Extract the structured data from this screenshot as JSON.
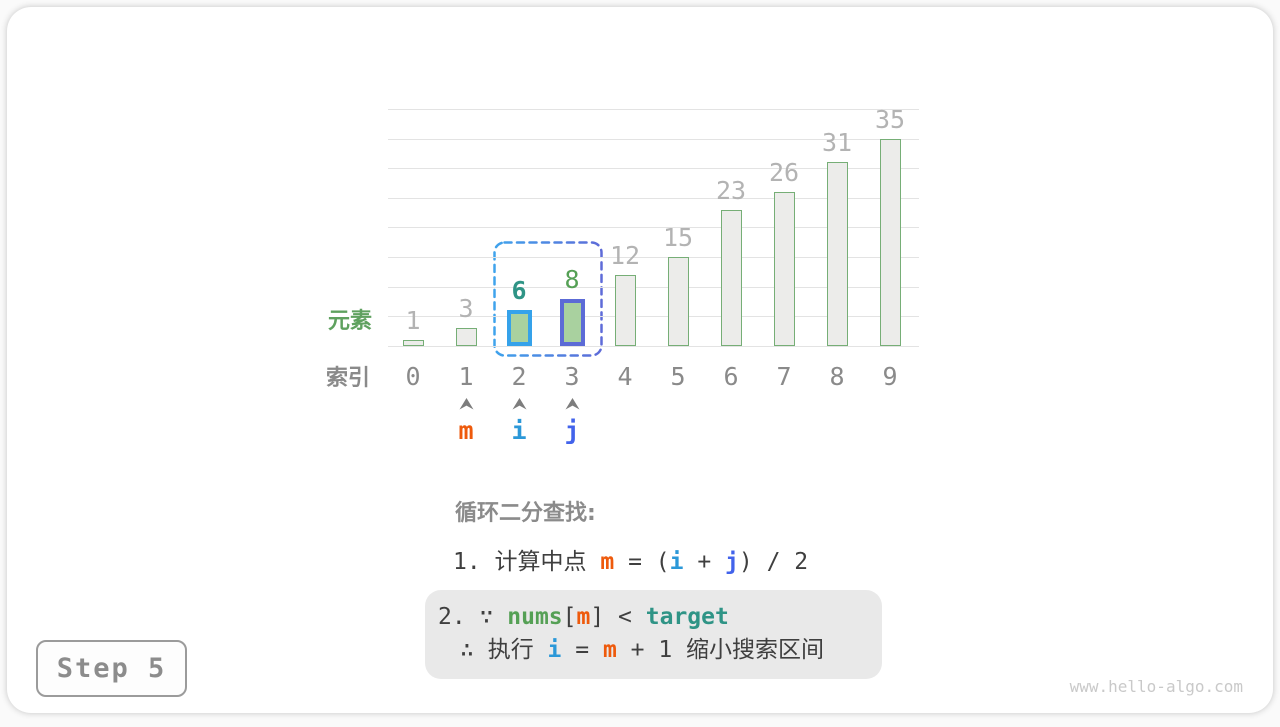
{
  "colors": {
    "dark": "#3f3f3f",
    "m_orange": "#ee5a0c",
    "i_blue": "#2b98d8",
    "j_indigo": "#4263eb",
    "nums_green": "#55a055",
    "target_teal": "#2f9486",
    "green_text": "#55a055",
    "gray_index": "#8a8a8a",
    "gray_value": "#b3b3b3",
    "arrow_gray": "#7d7d7d",
    "bar_fill": "#ececea",
    "bar_stroke": "#76ae76",
    "highlight_fill": "#a9d19f",
    "highlight_stroke_i": "#35a2ea",
    "highlight_stroke_j": "#5c6bd6",
    "selection_start": "#3fa3ec",
    "selection_end": "#5e6bd8",
    "gridline": "#e3e3e3",
    "box_bg": "#e9e9e9"
  },
  "chart_data": {
    "type": "bar",
    "title": "",
    "ylabel": "元素",
    "xlabel": "索引",
    "categories": [
      "0",
      "1",
      "2",
      "3",
      "4",
      "5",
      "6",
      "7",
      "8",
      "9"
    ],
    "values": [
      1,
      3,
      6,
      8,
      12,
      15,
      23,
      26,
      31,
      35
    ],
    "ylim": [
      0,
      40
    ],
    "gridline_step": 5,
    "grid": true,
    "legend": "none",
    "highlighted_bars": [
      {
        "index": 2,
        "value": 6,
        "stroke_key": "highlight_stroke_i",
        "fill_key": "highlight_fill",
        "label_color_key": "target_teal",
        "label_bold": true
      },
      {
        "index": 3,
        "value": 8,
        "stroke_key": "highlight_stroke_j",
        "fill_key": "highlight_fill",
        "label_color_key": "green_text",
        "label_bold": false
      }
    ],
    "selection_box": {
      "from_index": 2,
      "to_index": 3,
      "style": "dashed"
    }
  },
  "pointers": [
    {
      "label": "m",
      "index": 1,
      "color_key": "m_orange"
    },
    {
      "label": "i",
      "index": 2,
      "color_key": "i_blue"
    },
    {
      "label": "j",
      "index": 3,
      "color_key": "j_indigo"
    }
  ],
  "annotation": {
    "title": "循环二分查找:",
    "line1": {
      "segments": [
        {
          "t": "1. 计算中点 ",
          "c": "dark"
        },
        {
          "t": "m",
          "c": "m_orange",
          "b": true
        },
        {
          "t": " = (",
          "c": "dark"
        },
        {
          "t": "i",
          "c": "i_blue",
          "b": true
        },
        {
          "t": " + ",
          "c": "dark"
        },
        {
          "t": "j",
          "c": "j_indigo",
          "b": true
        },
        {
          "t": ") / 2",
          "c": "dark"
        }
      ]
    },
    "box": {
      "line1": {
        "segments": [
          {
            "t": "2. ∵ ",
            "c": "dark"
          },
          {
            "t": "nums",
            "c": "nums_green",
            "b": true
          },
          {
            "t": "[",
            "c": "dark"
          },
          {
            "t": "m",
            "c": "m_orange",
            "b": true
          },
          {
            "t": "] < ",
            "c": "dark"
          },
          {
            "t": "target",
            "c": "target_teal",
            "b": true
          }
        ]
      },
      "line2": {
        "segments": [
          {
            "t": "∴ 执行 ",
            "c": "dark"
          },
          {
            "t": "i",
            "c": "i_blue",
            "b": true
          },
          {
            "t": " = ",
            "c": "dark"
          },
          {
            "t": "m",
            "c": "m_orange",
            "b": true
          },
          {
            "t": " + 1 缩小搜索区间",
            "c": "dark"
          }
        ]
      }
    }
  },
  "badge": {
    "label": "Step 5"
  },
  "watermark": "www.hello-algo.com"
}
